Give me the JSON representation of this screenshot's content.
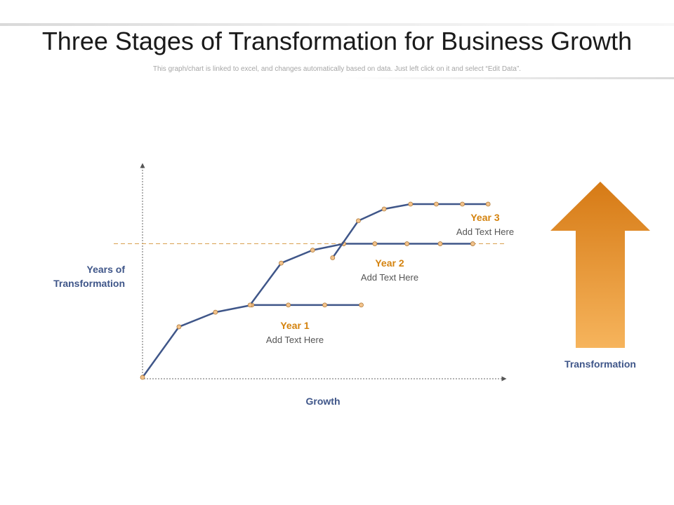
{
  "header": {
    "title": "Three Stages of Transformation for Business Growth",
    "subtitle": "This graph/chart is linked to excel, and changes automatically  based on data. Just left click on it and select “Edit Data”."
  },
  "colors": {
    "line": "#3f5689",
    "marker": "#f2c28b",
    "marker_stroke": "#b07c3c",
    "accent": "#d4830f",
    "axis_label": "#3f5689",
    "axis": "#666666",
    "guide": "#d9a04e",
    "arrow_top": "#d67a15",
    "arrow_bottom": "#f6b45c"
  },
  "arrow": {
    "icon": "up-arrow-icon",
    "label": "Transformation"
  },
  "chart_data": {
    "type": "line",
    "xlabel": "Growth",
    "ylabel": "Years of Transformation",
    "xlim": [
      0,
      100
    ],
    "ylim": [
      0,
      100
    ],
    "grid": false,
    "guideline_y": 65,
    "series": [
      {
        "label_title": "Year 1",
        "label_text": "Add Text Here",
        "x": [
          0,
          10.2,
          20.4,
          30.6,
          40.8,
          51,
          61.2
        ],
        "y": [
          0,
          24.6,
          31.7,
          35.2,
          35.2,
          35.2,
          35.2
        ]
      },
      {
        "label_title": "Year 2",
        "label_text": "Add Text Here",
        "x": [
          30.1,
          38.8,
          47.6,
          56.3,
          65,
          74,
          83.3,
          92.4
        ],
        "y": [
          35.2,
          55.6,
          61.9,
          65,
          65,
          65,
          65,
          65
        ]
      },
      {
        "label_title": "Year 3",
        "label_text": "Add Text Here",
        "x": [
          53.2,
          60.4,
          67.6,
          75,
          82.2,
          89.5,
          96.7
        ],
        "y": [
          58.2,
          76.2,
          81.9,
          84.3,
          84.3,
          84.3,
          84.3
        ]
      }
    ]
  }
}
